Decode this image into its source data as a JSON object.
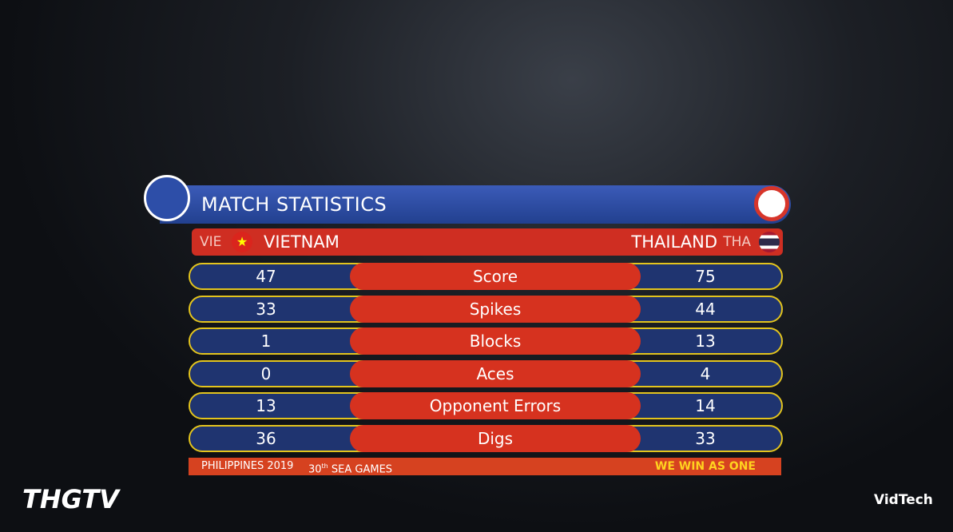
{
  "header": {
    "title": "MATCH STATISTICS"
  },
  "teams": {
    "left": {
      "code": "VIE",
      "name": "VIETNAM"
    },
    "right": {
      "name": "THAILAND",
      "code": "THA"
    }
  },
  "stats": [
    {
      "label": "Score",
      "left": 47,
      "right": 75
    },
    {
      "label": "Spikes",
      "left": 33,
      "right": 44
    },
    {
      "label": "Blocks",
      "left": 1,
      "right": 13
    },
    {
      "label": "Aces",
      "left": 0,
      "right": 4
    },
    {
      "label": "Opponent Errors",
      "left": 13,
      "right": 14
    },
    {
      "label": "Digs",
      "left": 36,
      "right": 33
    }
  ],
  "footer": {
    "event": "PHILIPPINES 2019",
    "games_number": "30",
    "games_suffix": "th",
    "games_name": "SEA GAMES",
    "slogan": "WE WIN AS ONE"
  },
  "watermarks": {
    "left": "THGTV",
    "right": "VidTech"
  }
}
